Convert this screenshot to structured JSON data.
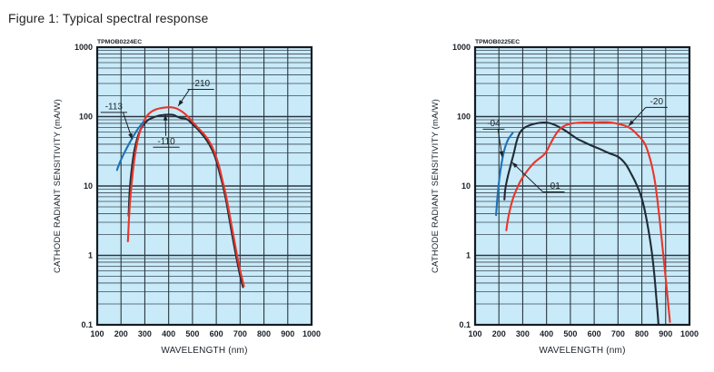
{
  "title": "Figure 1: Typical spectral response",
  "colors": {
    "plot_bg": "#c9eaf8",
    "grid_minor": "#3d4a56",
    "grid_major": "#2b3742",
    "axis": "#141c24",
    "text": "#1a2128"
  },
  "chart_data": [
    {
      "type": "line",
      "id_label": "TPMOB0224EC",
      "xlabel": "WAVELENGTH (nm)",
      "ylabel": "CATHODE RADIANT SENSITIVITY (mA/W)",
      "x_scale": "linear",
      "y_scale": "log",
      "xlim": [
        100,
        1000
      ],
      "ylim": [
        0.1,
        1000
      ],
      "grid": true,
      "x_ticks": [
        100,
        200,
        300,
        400,
        500,
        600,
        700,
        800,
        900,
        1000
      ],
      "y_ticks": [
        "1000",
        "100",
        "10",
        "1",
        "0.1"
      ],
      "series": [
        {
          "name": "-110",
          "color": "#202b37",
          "points": [
            [
              232,
              3.7
            ],
            [
              235,
              7
            ],
            [
              240,
              12
            ],
            [
              247,
              20
            ],
            [
              255,
              31
            ],
            [
              264,
              43
            ],
            [
              274,
              56
            ],
            [
              285,
              68
            ],
            [
              298,
              79
            ],
            [
              315,
              90
            ],
            [
              335,
              97
            ],
            [
              358,
              103
            ],
            [
              382,
              106
            ],
            [
              405,
              107
            ],
            [
              422,
              105
            ],
            [
              438,
              99
            ],
            [
              452,
              95
            ],
            [
              468,
              94
            ],
            [
              484,
              88
            ],
            [
              500,
              78
            ],
            [
              518,
              68
            ],
            [
              536,
              58
            ],
            [
              553,
              49
            ],
            [
              570,
              40
            ],
            [
              588,
              30
            ],
            [
              602,
              22
            ],
            [
              615,
              15
            ],
            [
              628,
              10
            ],
            [
              642,
              6
            ],
            [
              656,
              3.2
            ],
            [
              670,
              1.7
            ],
            [
              684,
              0.95
            ],
            [
              698,
              0.55
            ],
            [
              712,
              0.35
            ]
          ]
        },
        {
          "name": "-210",
          "color": "#e8362b",
          "points": [
            [
              229,
              1.6
            ],
            [
              233,
              3.2
            ],
            [
              238,
              6
            ],
            [
              245,
              11
            ],
            [
              252,
              19
            ],
            [
              260,
              30
            ],
            [
              269,
              44
            ],
            [
              279,
              60
            ],
            [
              290,
              77
            ],
            [
              302,
              94
            ],
            [
              316,
              109
            ],
            [
              332,
              120
            ],
            [
              350,
              128
            ],
            [
              370,
              133
            ],
            [
              392,
              136
            ],
            [
              412,
              136
            ],
            [
              430,
              132
            ],
            [
              446,
              124
            ],
            [
              462,
              114
            ],
            [
              478,
              102
            ],
            [
              495,
              88
            ],
            [
              512,
              76
            ],
            [
              530,
              65
            ],
            [
              548,
              56
            ],
            [
              565,
              47
            ],
            [
              582,
              37
            ],
            [
              598,
              27
            ],
            [
              612,
              19
            ],
            [
              626,
              12
            ],
            [
              640,
              7.5
            ],
            [
              654,
              4.2
            ],
            [
              668,
              2.3
            ],
            [
              682,
              1.25
            ],
            [
              696,
              0.7
            ],
            [
              716,
              0.36
            ]
          ]
        },
        {
          "name": "-113",
          "color": "#1e72b8",
          "points": [
            [
              183,
              17
            ],
            [
              193,
              21
            ],
            [
              205,
              26
            ],
            [
              218,
              32
            ],
            [
              231,
              39
            ],
            [
              244,
              47
            ],
            [
              257,
              56
            ],
            [
              269,
              65
            ],
            [
              281,
              74
            ],
            [
              293,
              83
            ]
          ]
        }
      ],
      "annotations": [
        {
          "text": "-113",
          "x": 170,
          "v": 140,
          "tip_x": 247,
          "tip_v": 47
        },
        {
          "text": "-210",
          "x": 535,
          "v": 300,
          "tip_x": 440,
          "tip_v": 142
        },
        {
          "text": "-110",
          "x": 390,
          "v": 44,
          "tip_x": 386,
          "tip_v": 107
        }
      ]
    },
    {
      "type": "line",
      "id_label": "TPMOB0225EC",
      "xlabel": "WAVELENGTH (nm)",
      "ylabel": "CATHODE RADIANT SENSITIVITY (mA/W)",
      "x_scale": "linear",
      "y_scale": "log",
      "xlim": [
        100,
        1000
      ],
      "ylim": [
        0.1,
        1000
      ],
      "grid": true,
      "x_ticks": [
        100,
        200,
        300,
        400,
        500,
        600,
        700,
        800,
        900,
        1000
      ],
      "y_ticks": [
        "1000",
        "100",
        "10",
        "1",
        "0.1"
      ],
      "series": [
        {
          "name": "-01",
          "color": "#202b37",
          "points": [
            [
              223,
              6.4
            ],
            [
              226,
              8.5
            ],
            [
              231,
              11
            ],
            [
              238,
              14
            ],
            [
              246,
              18
            ],
            [
              254,
              23
            ],
            [
              263,
              30
            ],
            [
              272,
              41
            ],
            [
              282,
              53
            ],
            [
              293,
              62
            ],
            [
              307,
              69
            ],
            [
              325,
              74
            ],
            [
              345,
              78
            ],
            [
              368,
              81
            ],
            [
              390,
              82
            ],
            [
              410,
              81
            ],
            [
              430,
              77
            ],
            [
              452,
              71
            ],
            [
              475,
              64
            ],
            [
              500,
              56
            ],
            [
              528,
              48
            ],
            [
              556,
              43
            ],
            [
              590,
              38
            ],
            [
              625,
              34
            ],
            [
              660,
              30
            ],
            [
              695,
              27
            ],
            [
              715,
              24
            ],
            [
              735,
              20
            ],
            [
              755,
              15
            ],
            [
              775,
              11
            ],
            [
              795,
              7.5
            ],
            [
              812,
              4.5
            ],
            [
              828,
              2.3
            ],
            [
              842,
              1.1
            ],
            [
              853,
              0.5
            ],
            [
              862,
              0.22
            ],
            [
              870,
              0.1
            ]
          ]
        },
        {
          "name": "-20",
          "color": "#e8362b",
          "points": [
            [
              231,
              2.3
            ],
            [
              240,
              3.6
            ],
            [
              251,
              5.3
            ],
            [
              263,
              7.2
            ],
            [
              277,
              9.4
            ],
            [
              292,
              12
            ],
            [
              310,
              15
            ],
            [
              330,
              18.5
            ],
            [
              350,
              22
            ],
            [
              370,
              25
            ],
            [
              388,
              28
            ],
            [
              403,
              33
            ],
            [
              417,
              41
            ],
            [
              432,
              51
            ],
            [
              447,
              61
            ],
            [
              462,
              69
            ],
            [
              480,
              75
            ],
            [
              500,
              79
            ],
            [
              525,
              81
            ],
            [
              555,
              82
            ],
            [
              590,
              82
            ],
            [
              625,
              83
            ],
            [
              655,
              83
            ],
            [
              682,
              81
            ],
            [
              705,
              78
            ],
            [
              728,
              74
            ],
            [
              748,
              69
            ],
            [
              766,
              62
            ],
            [
              783,
              54
            ],
            [
              800,
              47
            ],
            [
              815,
              39
            ],
            [
              830,
              28
            ],
            [
              843,
              19
            ],
            [
              855,
              11.5
            ],
            [
              866,
              6
            ],
            [
              877,
              2.8
            ],
            [
              888,
              1.2
            ],
            [
              898,
              0.55
            ],
            [
              908,
              0.25
            ],
            [
              918,
              0.11
            ]
          ]
        },
        {
          "name": "-04",
          "color": "#1e72b8",
          "points": [
            [
              188,
              3.8
            ],
            [
              194,
              7
            ],
            [
              201,
              12
            ],
            [
              209,
              19
            ],
            [
              218,
              28
            ],
            [
              228,
              38
            ],
            [
              239,
              47
            ],
            [
              249,
              53
            ],
            [
              258,
              58
            ]
          ]
        }
      ],
      "annotations": [
        {
          "text": "-04",
          "x": 178,
          "v": 80,
          "tip_x": 214,
          "tip_v": 26
        },
        {
          "text": "-01",
          "x": 430,
          "v": 10,
          "tip_x": 255,
          "tip_v": 22
        },
        {
          "text": "-20",
          "x": 862,
          "v": 165,
          "tip_x": 744,
          "tip_v": 73
        }
      ]
    }
  ]
}
